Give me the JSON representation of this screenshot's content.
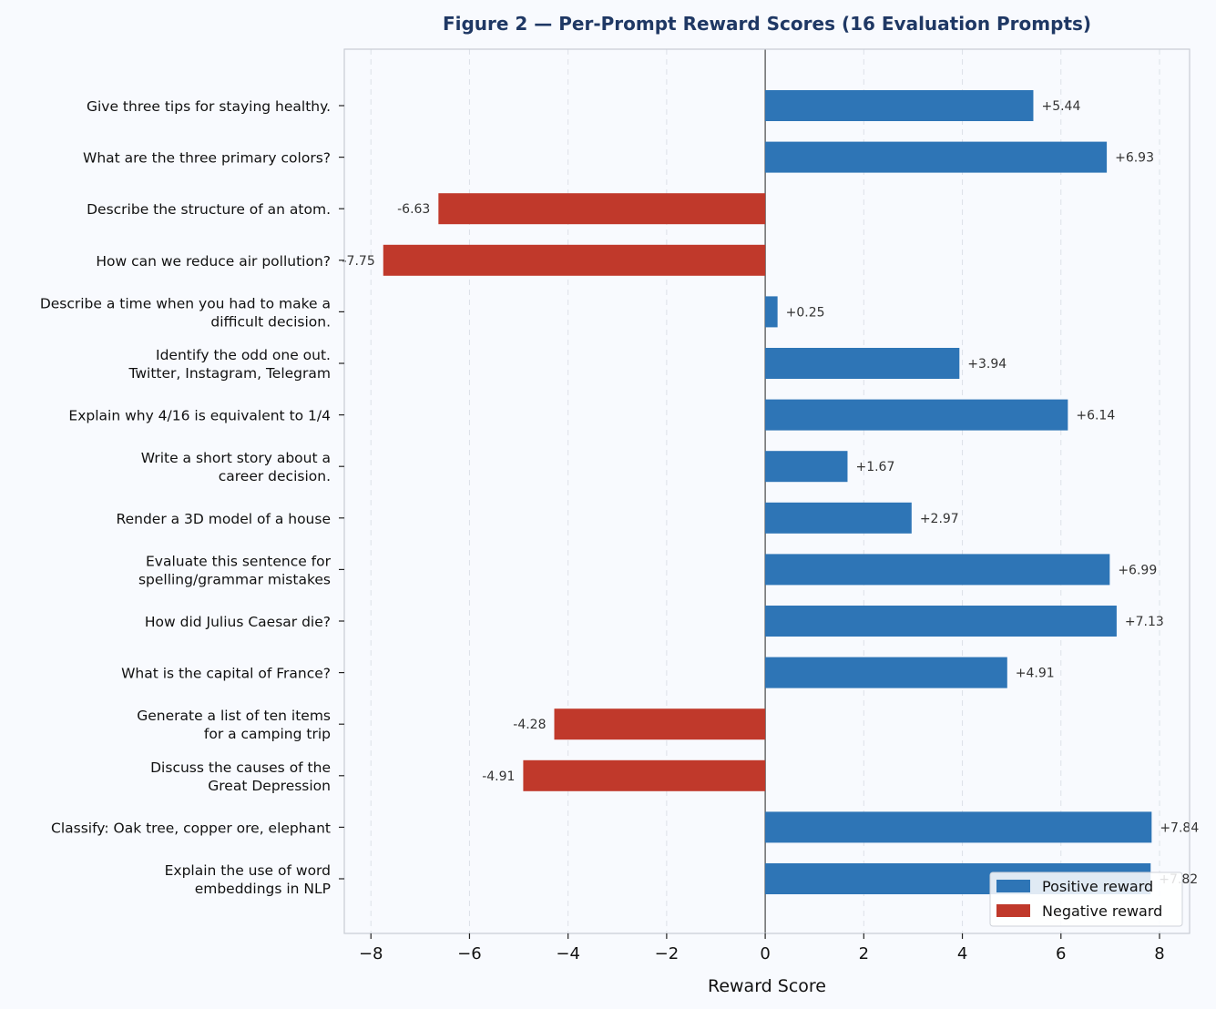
{
  "chart_data": {
    "type": "bar",
    "orientation": "horizontal",
    "title": "Figure 2 — Per-Prompt Reward Scores (16 Evaluation Prompts)",
    "xlabel": "Reward Score",
    "ylabel": "",
    "xlim": [
      -8.54,
      8.61
    ],
    "xticks": [
      -8,
      -6,
      -4,
      -2,
      0,
      2,
      4,
      6,
      8
    ],
    "xtick_labels": [
      "−8",
      "−6",
      "−4",
      "−2",
      "0",
      "2",
      "4",
      "6",
      "8"
    ],
    "grid": "x, dashed",
    "legend_position": "bottom-right",
    "colors": {
      "positive": "#2e75b6",
      "negative": "#c0392b",
      "title": "#1f3864",
      "background": "#f8fafe"
    },
    "legend": [
      "Positive reward",
      "Negative reward"
    ],
    "categories": [
      [
        "Give three tips for staying healthy."
      ],
      [
        "What are the three primary colors?"
      ],
      [
        "Describe the structure of an atom."
      ],
      [
        "How can we reduce air pollution?"
      ],
      [
        "Describe a time when you had to make a",
        "difficult decision."
      ],
      [
        "Identify the odd one out.",
        "Twitter, Instagram, Telegram"
      ],
      [
        "Explain why 4/16 is equivalent to 1/4"
      ],
      [
        "Write a short story about a",
        "career decision."
      ],
      [
        "Render a 3D model of a house"
      ],
      [
        "Evaluate this sentence for",
        "spelling/grammar mistakes"
      ],
      [
        "How did Julius Caesar die?"
      ],
      [
        "What is the capital of France?"
      ],
      [
        "Generate a list of ten items",
        "for a camping trip"
      ],
      [
        "Discuss the causes of the",
        "Great Depression"
      ],
      [
        "Classify: Oak tree, copper ore, elephant"
      ],
      [
        "Explain the use of word",
        "embeddings in NLP"
      ]
    ],
    "values": [
      5.44,
      6.93,
      -6.63,
      -7.75,
      0.25,
      3.94,
      6.14,
      1.67,
      2.97,
      6.99,
      7.13,
      4.91,
      -4.28,
      -4.91,
      7.84,
      7.82
    ],
    "data_labels": [
      "+5.44",
      "+6.93",
      "-6.63",
      "-7.75",
      "+0.25",
      "+3.94",
      "+6.14",
      "+1.67",
      "+2.97",
      "+6.99",
      "+7.13",
      "+4.91",
      "-4.28",
      "-4.91",
      "+7.84",
      "+7.82"
    ]
  }
}
